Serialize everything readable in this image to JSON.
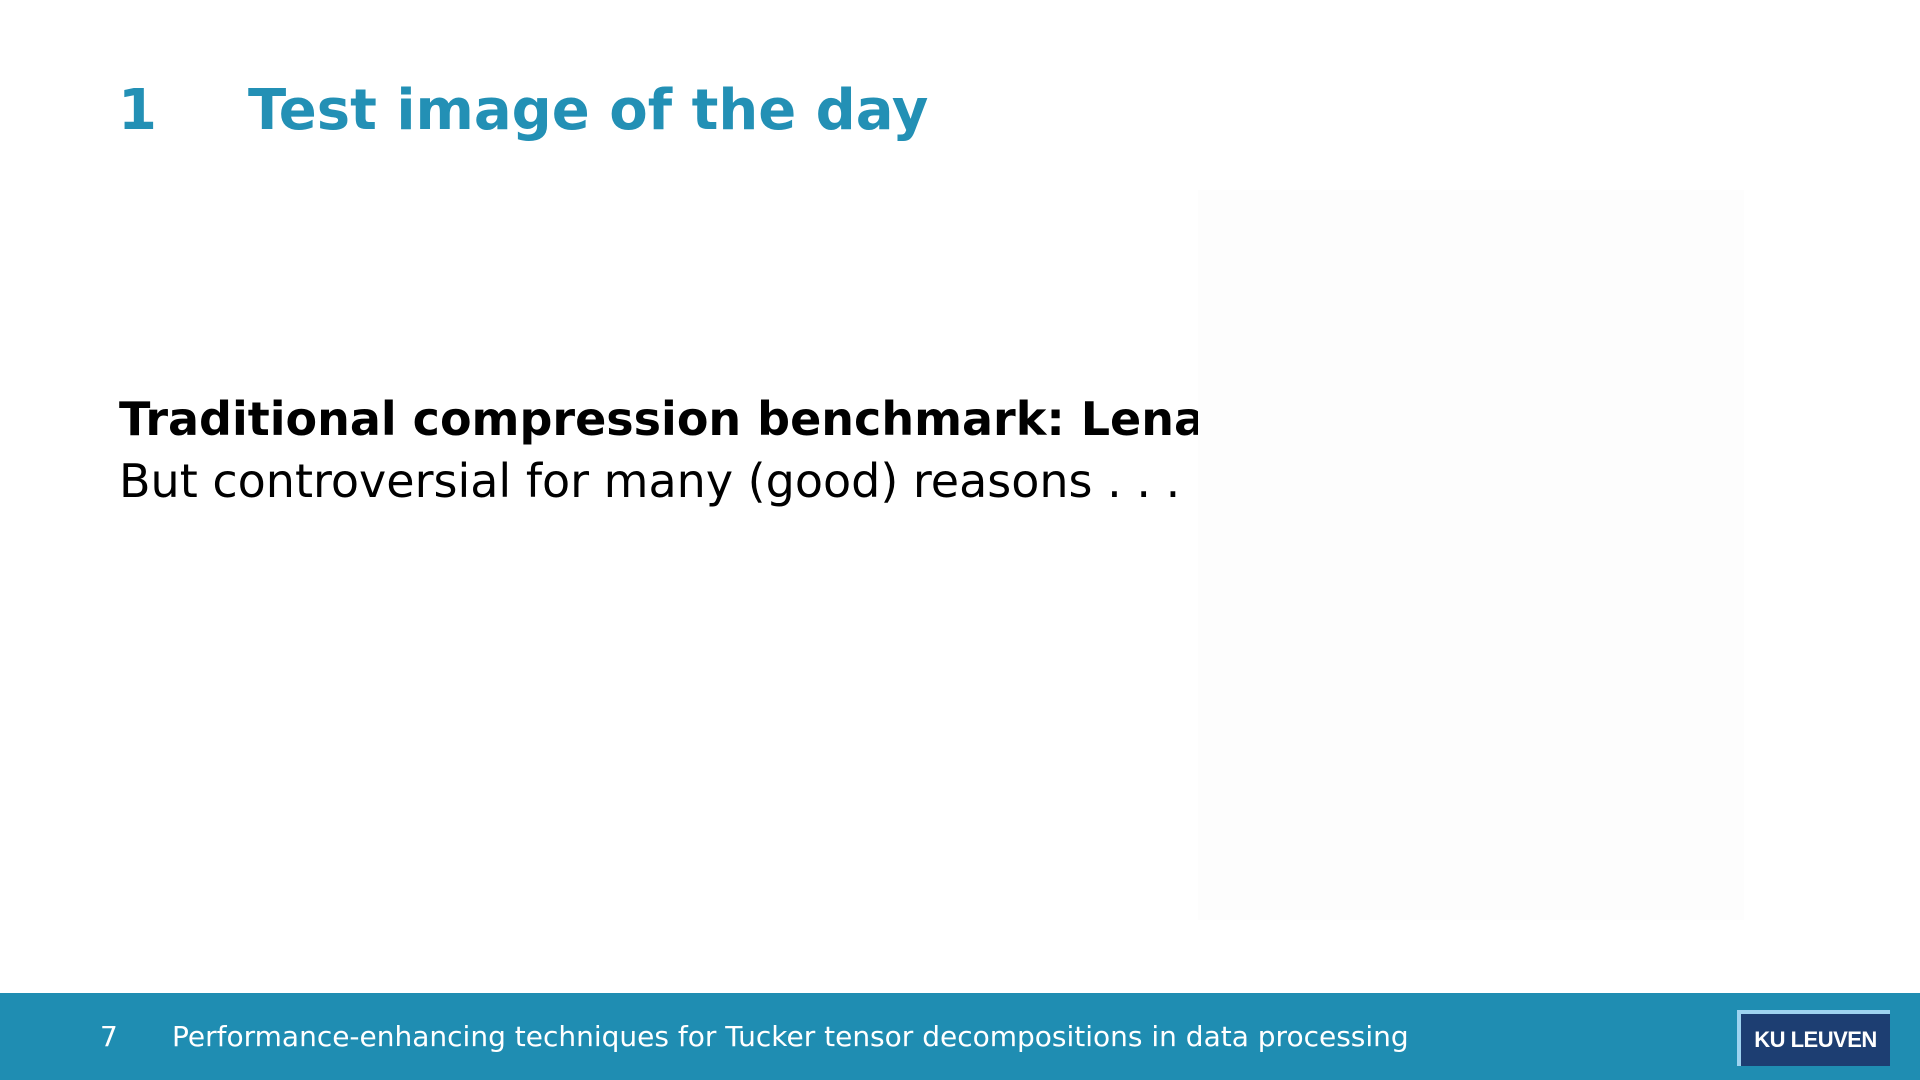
{
  "slide": {
    "section_number": "1",
    "title": "Test image of the day",
    "heading": "Traditional compression benchmark: Lena",
    "body_line": "But controversial for many (good) reasons . . ."
  },
  "footer": {
    "page_number": "7",
    "presentation_title": "Performance-enhancing techniques for Tucker tensor decompositions in data processing",
    "logo_text": "KU LEUVEN"
  },
  "colors": {
    "title": "#2390b5",
    "footer_background": "#1f8db2",
    "logo_background": "#1d3e72",
    "logo_accent": "#9ed3f0"
  }
}
